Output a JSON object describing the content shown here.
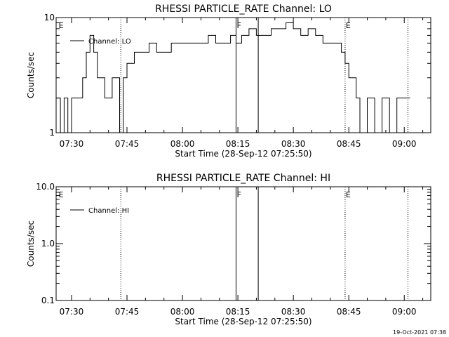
{
  "timestamp": "19-Oct-2021 07:38",
  "chart_data": [
    {
      "type": "line",
      "title": "RHESSI PARTICLE_RATE Channel: LO",
      "xlabel": "Start Time (28-Sep-12 07:25:50)",
      "ylabel": "Counts/sec",
      "yscale": "log",
      "xlim": [
        "07:25:50",
        "09:07:10"
      ],
      "ylim": [
        1,
        10
      ],
      "x_ticks": [
        "07:30",
        "07:45",
        "08:00",
        "08:15",
        "08:30",
        "08:45",
        "09:00"
      ],
      "y_ticks": [
        "1",
        "10"
      ],
      "legend": "top-left",
      "series": [
        {
          "name": "Channel: LO",
          "x": [
            "07:26:00",
            "07:27:00",
            "07:28:00",
            "07:29:00",
            "07:30:00",
            "07:31:00",
            "07:32:00",
            "07:33:00",
            "07:34:00",
            "07:35:00",
            "07:36:00",
            "07:37:00",
            "07:38:00",
            "07:39:00",
            "07:40:00",
            "07:41:00",
            "07:42:00",
            "07:43:00",
            "07:44:00",
            "07:45:00",
            "07:47:00",
            "07:49:00",
            "07:51:00",
            "07:53:00",
            "07:55:00",
            "07:57:00",
            "07:59:00",
            "08:01:00",
            "08:03:00",
            "08:05:00",
            "08:07:00",
            "08:09:00",
            "08:11:00",
            "08:13:00",
            "08:14:30",
            "08:16:00",
            "08:18:00",
            "08:20:00",
            "08:22:00",
            "08:24:00",
            "08:26:00",
            "08:28:00",
            "08:30:00",
            "08:32:00",
            "08:34:00",
            "08:36:00",
            "08:38:00",
            "08:40:00",
            "08:42:00",
            "08:43:00",
            "08:44:00",
            "08:45:00",
            "08:46:00",
            "08:47:00",
            "08:48:00",
            "08:50:00",
            "08:52:00",
            "08:54:00",
            "08:56:00",
            "08:58:00",
            "09:00:00",
            "09:01:00"
          ],
          "y": [
            2,
            1,
            2,
            1,
            2,
            2,
            2,
            3,
            5,
            7,
            5,
            3,
            3,
            2,
            2,
            3,
            3,
            1,
            3,
            4,
            5,
            5,
            6,
            5,
            5,
            6,
            6,
            6,
            6,
            6,
            7,
            6,
            6,
            7,
            6,
            7,
            8,
            7,
            7,
            8,
            8,
            9,
            8,
            7,
            8,
            7,
            6,
            6,
            6,
            5,
            4,
            3,
            3,
            2,
            1,
            2,
            1,
            2,
            1,
            2,
            2,
            2
          ]
        }
      ],
      "markers": [
        {
          "label": "E",
          "time": "07:26:20",
          "style": "none"
        },
        {
          "label": "",
          "time": "07:43:20",
          "style": "dotted"
        },
        {
          "label": "F",
          "time": "08:14:30",
          "style": "solid"
        },
        {
          "label": "",
          "time": "08:20:30",
          "style": "solid"
        },
        {
          "label": "E",
          "time": "08:44:00",
          "style": "dotted"
        },
        {
          "label": "",
          "time": "09:01:00",
          "style": "dotted"
        }
      ]
    },
    {
      "type": "line",
      "title": "RHESSI PARTICLE_RATE Channel: HI",
      "xlabel": "Start Time (28-Sep-12 07:25:50)",
      "ylabel": "Counts/sec",
      "yscale": "log",
      "xlim": [
        "07:25:50",
        "09:07:10"
      ],
      "ylim": [
        0.1,
        10
      ],
      "x_ticks": [
        "07:30",
        "07:45",
        "08:00",
        "08:15",
        "08:30",
        "08:45",
        "09:00"
      ],
      "y_ticks": [
        "0.1",
        "1.0",
        "10.0"
      ],
      "legend": "top-left",
      "series": [
        {
          "name": "Channel: HI",
          "x": [],
          "y": []
        }
      ],
      "markers": [
        {
          "label": "E",
          "time": "07:26:20",
          "style": "none"
        },
        {
          "label": "",
          "time": "07:43:20",
          "style": "dotted"
        },
        {
          "label": "F",
          "time": "08:14:30",
          "style": "solid"
        },
        {
          "label": "",
          "time": "08:20:30",
          "style": "solid"
        },
        {
          "label": "E",
          "time": "08:44:00",
          "style": "dotted"
        },
        {
          "label": "",
          "time": "09:01:00",
          "style": "dotted"
        }
      ]
    }
  ]
}
